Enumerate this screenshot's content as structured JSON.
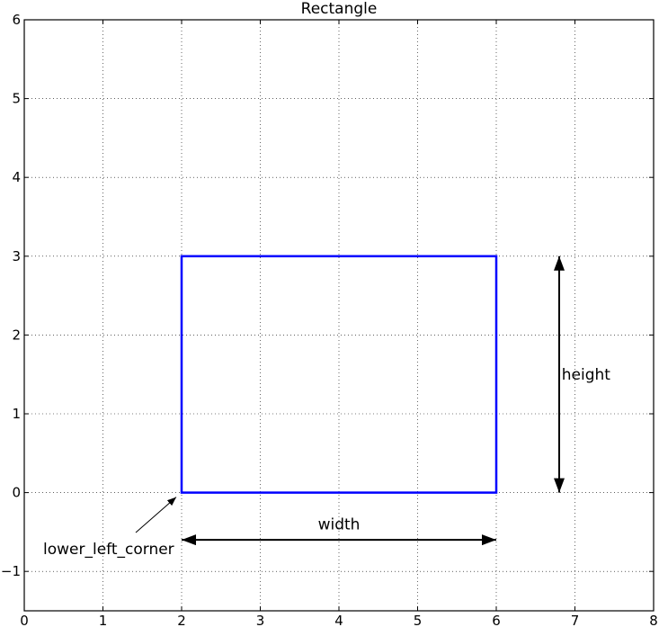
{
  "chart_data": {
    "type": "diagram",
    "title": "Rectangle",
    "xlim": [
      0,
      8
    ],
    "ylim": [
      -1.5,
      6
    ],
    "xticks": [
      "0",
      "1",
      "2",
      "3",
      "4",
      "5",
      "6",
      "7",
      "8"
    ],
    "yticks": [
      "−1",
      "0",
      "1",
      "2",
      "3",
      "4",
      "5",
      "6"
    ],
    "grid": true,
    "rectangle": {
      "x": 2,
      "y": 0,
      "width": 4,
      "height": 3,
      "color": "#0000ff"
    },
    "annotations": {
      "height": {
        "text": "height",
        "from": [
          6.8,
          0
        ],
        "to": [
          6.8,
          3
        ],
        "text_pos": [
          6.9,
          1.5
        ]
      },
      "width": {
        "text": "width",
        "from": [
          2,
          -0.6
        ],
        "to": [
          6,
          -0.6
        ],
        "text_pos": [
          4,
          -0.4
        ]
      },
      "corner": {
        "text": "lower_left_corner",
        "xy": [
          2,
          0
        ],
        "text_pos": [
          0.24,
          -0.78
        ]
      }
    }
  }
}
